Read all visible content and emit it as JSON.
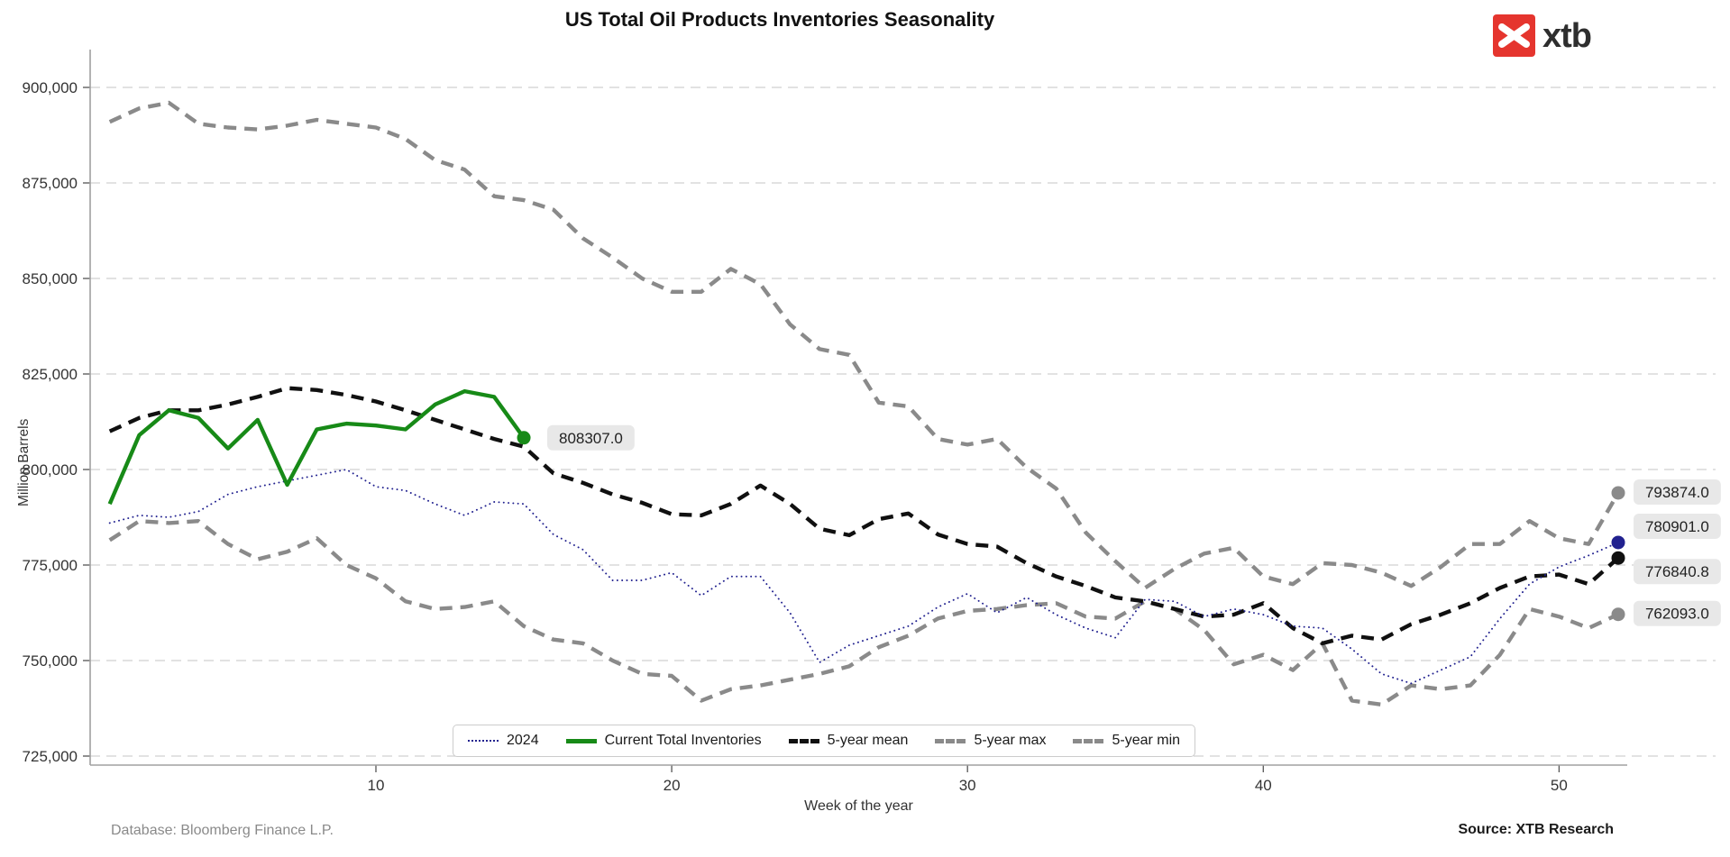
{
  "page": {
    "title": "US Total Oil Products Inventories Seasonality"
  },
  "logo": {
    "text": "xtb"
  },
  "axes": {
    "y_label": "Million Barrels",
    "x_label": "Week of the year",
    "y_ticks": [
      725000,
      750000,
      775000,
      800000,
      825000,
      850000,
      875000,
      900000
    ],
    "x_ticks": [
      10,
      20,
      30,
      40,
      50
    ]
  },
  "legend": {
    "items": [
      {
        "label": "2024",
        "swatch": "dotted-navy"
      },
      {
        "label": "Current Total Inventories",
        "swatch": "solid-green"
      },
      {
        "label": "5-year mean",
        "swatch": "dashed-black"
      },
      {
        "label": "5-year max",
        "swatch": "dashed-gray"
      },
      {
        "label": "5-year min",
        "swatch": "dashed-gray"
      }
    ]
  },
  "footer": {
    "database": "Database: Bloomberg Finance L.P.",
    "source": "Source: XTB Research"
  },
  "colors": {
    "green": "#178a17",
    "navy": "#21218f",
    "black": "#101010",
    "gray": "#8a8a8a",
    "grid": "#d9d9d9",
    "spine": "#a0a0a0",
    "tick_text": "#333333",
    "label_box_bg": "#e8e8e8",
    "label_box_text": "#222222",
    "logo_red": "#e5352e"
  },
  "annotations": {
    "current_end_label": {
      "text": "808307.0",
      "value": 808307,
      "week": 15
    },
    "end_labels": [
      {
        "text": "793874.0",
        "value": 793874,
        "series": "5-year max",
        "color": "#8a8a8a"
      },
      {
        "text": "780901.0",
        "value": 780901,
        "series": "2024",
        "color": "#21218f"
      },
      {
        "text": "776840.8",
        "value": 776840.8,
        "series": "5-year mean",
        "color": "#101010"
      },
      {
        "text": "762093.0",
        "value": 762093,
        "series": "5-year min",
        "color": "#8a8a8a"
      }
    ]
  },
  "chart_data": {
    "type": "line",
    "title": "US Total Oil Products Inventories Seasonality",
    "xlabel": "Week of the year",
    "ylabel": "Million Barrels",
    "x_range": [
      1,
      52
    ],
    "ylim": [
      722000,
      906000
    ],
    "grid": "horizontal-dashed",
    "legend_position": "bottom-center",
    "series": [
      {
        "name": "5-year max",
        "style": "dashed",
        "color": "#8a8a8a",
        "width": 4.4,
        "end_dot": true,
        "values": [
          891000,
          894500,
          896000,
          890500,
          889500,
          889000,
          890000,
          891500,
          890500,
          889500,
          886500,
          881000,
          878500,
          871500,
          870500,
          868000,
          860500,
          855500,
          850000,
          846500,
          846500,
          852500,
          848500,
          838000,
          831500,
          830000,
          817500,
          816500,
          808000,
          806500,
          808000,
          800500,
          795000,
          783500,
          776000,
          769000,
          774000,
          778000,
          779500,
          772000,
          770000,
          775500,
          775000,
          773000,
          769500,
          774500,
          780500,
          780500,
          786500,
          782000,
          780500,
          793874
        ]
      },
      {
        "name": "5-year min",
        "style": "dashed",
        "color": "#8a8a8a",
        "width": 4.4,
        "end_dot": true,
        "values": [
          781500,
          786500,
          786000,
          786500,
          780500,
          776500,
          778500,
          782000,
          775000,
          771500,
          765500,
          763500,
          764000,
          765500,
          759000,
          755500,
          754500,
          750000,
          746500,
          746000,
          739500,
          742500,
          743500,
          745000,
          746500,
          748500,
          753500,
          756500,
          761000,
          763000,
          763500,
          764500,
          765000,
          761500,
          761000,
          765500,
          763500,
          758000,
          749000,
          751500,
          747500,
          754500,
          739500,
          738500,
          743500,
          742500,
          743500,
          751500,
          763500,
          761500,
          758500,
          762093
        ]
      },
      {
        "name": "5-year mean",
        "style": "dashed",
        "color": "#101010",
        "width": 4.4,
        "end_dot": true,
        "values": [
          810000,
          813500,
          815500,
          815500,
          817000,
          819000,
          821300,
          820800,
          819500,
          817800,
          815500,
          813000,
          810500,
          808000,
          806000,
          799000,
          796500,
          793500,
          791300,
          788300,
          788000,
          791000,
          795800,
          791000,
          784500,
          782800,
          787000,
          788500,
          783000,
          780500,
          779800,
          775500,
          772000,
          769500,
          766500,
          765500,
          763500,
          761500,
          762000,
          765000,
          758500,
          754500,
          756500,
          755500,
          759500,
          762000,
          765000,
          769000,
          772000,
          772500,
          770000,
          776841
        ]
      },
      {
        "name": "2024",
        "style": "dotted",
        "color": "#21218f",
        "width": 1.9,
        "end_dot": true,
        "values": [
          786000,
          788000,
          787500,
          789000,
          793500,
          795500,
          797000,
          798500,
          800000,
          795500,
          794500,
          791000,
          788000,
          791500,
          791000,
          783000,
          779000,
          771000,
          771000,
          773000,
          767000,
          772000,
          772000,
          762500,
          749500,
          754000,
          756500,
          759000,
          764000,
          767500,
          762500,
          766500,
          762000,
          758500,
          756000,
          766000,
          765500,
          761500,
          763500,
          762000,
          759000,
          758500,
          753000,
          746500,
          744000,
          747500,
          751000,
          761000,
          770000,
          774500,
          777500,
          780901
        ]
      },
      {
        "name": "Current Total Inventories",
        "style": "solid",
        "color": "#178a17",
        "width": 4.4,
        "end_dot": true,
        "values": [
          791000,
          809000,
          815500,
          813500,
          805500,
          813000,
          796000,
          810500,
          812000,
          811500,
          810500,
          817000,
          820500,
          819000,
          808307
        ]
      }
    ]
  }
}
